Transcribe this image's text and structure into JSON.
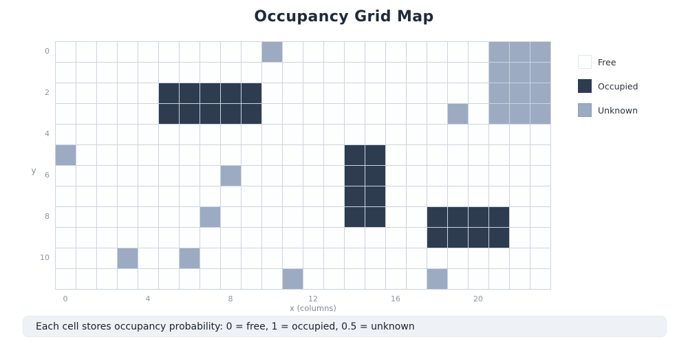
{
  "title": "Occupancy Grid Map",
  "footer": {
    "text": "Each cell stores occupancy probability: 0 = free, 1 = occupied, 0.5 = unknown"
  },
  "colors": {
    "page_background": "#ffffff",
    "grid_line": "#ccd4df",
    "title_text": "#1f2a3c",
    "tick_text": "#8b95a5",
    "axis_label_text": "#7f8a9b",
    "footer_background": "#eef2f7",
    "footer_text": "#17202e"
  },
  "chart_data": {
    "type": "heatmap",
    "title": "Occupancy Grid Map",
    "xlabel": "x (columns)",
    "ylabel": "y",
    "n_cols": 24,
    "n_rows": 12,
    "grid_on": true,
    "legend_position": "right",
    "x_ticks": [
      {
        "label": "0",
        "col": 0
      },
      {
        "label": "4",
        "col": 4
      },
      {
        "label": "8",
        "col": 8
      },
      {
        "label": "12",
        "col": 12
      },
      {
        "label": "16",
        "col": 16
      },
      {
        "label": "20",
        "col": 20
      }
    ],
    "y_ticks": [
      {
        "label": "0",
        "row": 0
      },
      {
        "label": "2",
        "row": 2
      },
      {
        "label": "4",
        "row": 4
      },
      {
        "label": "6",
        "row": 6
      },
      {
        "label": "8",
        "row": 8
      },
      {
        "label": "10",
        "row": 10
      }
    ],
    "value_colors": {
      "0": "#fdfefe",
      "0.5": "#9cabc2",
      "1": "#2e3c50"
    },
    "legend": [
      {
        "label": "Free",
        "value": 0,
        "color": "#fdfefe"
      },
      {
        "label": "Occupied",
        "value": 1,
        "color": "#2e3c50"
      },
      {
        "label": "Unknown",
        "value": 0.5,
        "color": "#9cabc2"
      }
    ],
    "grid": [
      [
        0,
        0,
        0,
        0,
        0,
        0,
        0,
        0,
        0,
        0,
        0.5,
        0,
        0,
        0,
        0,
        0,
        0,
        0,
        0,
        0,
        0,
        0.5,
        0.5,
        0.5
      ],
      [
        0,
        0,
        0,
        0,
        0,
        0,
        0,
        0,
        0,
        0,
        0,
        0,
        0,
        0,
        0,
        0,
        0,
        0,
        0,
        0,
        0,
        0.5,
        0.5,
        0.5
      ],
      [
        0,
        0,
        0,
        0,
        0,
        1,
        1,
        1,
        1,
        1,
        0,
        0,
        0,
        0,
        0,
        0,
        0,
        0,
        0,
        0,
        0,
        0.5,
        0.5,
        0.5
      ],
      [
        0,
        0,
        0,
        0,
        0,
        1,
        1,
        1,
        1,
        1,
        0,
        0,
        0,
        0,
        0,
        0,
        0,
        0,
        0,
        0.5,
        0,
        0.5,
        0.5,
        0.5
      ],
      [
        0,
        0,
        0,
        0,
        0,
        0,
        0,
        0,
        0,
        0,
        0,
        0,
        0,
        0,
        0,
        0,
        0,
        0,
        0,
        0,
        0,
        0,
        0,
        0
      ],
      [
        0.5,
        0,
        0,
        0,
        0,
        0,
        0,
        0,
        0,
        0,
        0,
        0,
        0,
        0,
        1,
        1,
        0,
        0,
        0,
        0,
        0,
        0,
        0,
        0
      ],
      [
        0,
        0,
        0,
        0,
        0,
        0,
        0,
        0,
        0.5,
        0,
        0,
        0,
        0,
        0,
        1,
        1,
        0,
        0,
        0,
        0,
        0,
        0,
        0,
        0
      ],
      [
        0,
        0,
        0,
        0,
        0,
        0,
        0,
        0,
        0,
        0,
        0,
        0,
        0,
        0,
        1,
        1,
        0,
        0,
        0,
        0,
        0,
        0,
        0,
        0
      ],
      [
        0,
        0,
        0,
        0,
        0,
        0,
        0,
        0.5,
        0,
        0,
        0,
        0,
        0,
        0,
        1,
        1,
        0,
        0,
        1,
        1,
        1,
        1,
        0,
        0
      ],
      [
        0,
        0,
        0,
        0,
        0,
        0,
        0,
        0,
        0,
        0,
        0,
        0,
        0,
        0,
        0,
        0,
        0,
        0,
        1,
        1,
        1,
        1,
        0,
        0
      ],
      [
        0,
        0,
        0,
        0.5,
        0,
        0,
        0.5,
        0,
        0,
        0,
        0,
        0,
        0,
        0,
        0,
        0,
        0,
        0,
        0,
        0,
        0,
        0,
        0,
        0
      ],
      [
        0,
        0,
        0,
        0,
        0,
        0,
        0,
        0,
        0,
        0,
        0,
        0.5,
        0,
        0,
        0,
        0,
        0,
        0,
        0.5,
        0,
        0,
        0,
        0,
        0
      ]
    ]
  }
}
